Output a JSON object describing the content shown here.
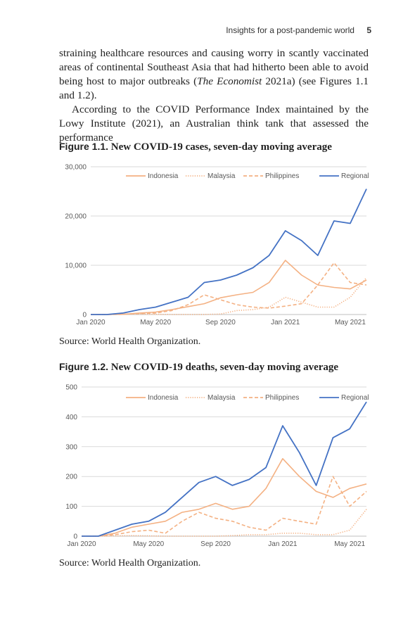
{
  "header": {
    "running_title": "Insights for a post-pandemic world",
    "page_number": "5"
  },
  "body": {
    "p1_a": "straining healthcare resources and causing worry in scantly vaccinated areas of continental Southeast Asia that had hitherto been able to avoid being host to major outbreaks (",
    "p1_italic": "The Economist",
    "p1_b": " 2021a) (see Figures 1.1 and 1.2).",
    "p2": "According to the COVID Performance Index maintained by the Lowy Institute (2021), an Australian think tank that assessed the performance"
  },
  "figures": [
    {
      "label": "Figure 1.1.",
      "title": "New COVID-19 cases, seven-day moving average",
      "source": "Source: World Health Organization."
    },
    {
      "label": "Figure 1.2.",
      "title": "New COVID-19 deaths, seven-day moving average",
      "source": "Source: World Health Organization."
    }
  ],
  "colors": {
    "indonesia": "#F4B183",
    "malaysia": "#F4B183",
    "philippines": "#F4B183",
    "regional": "#4472C4",
    "grid": "#D9D9D9"
  },
  "chart_data": [
    {
      "type": "line",
      "title": "New COVID-19 cases, seven-day moving average",
      "xlabel": "",
      "ylabel": "",
      "x_ticks": [
        "Jan 2020",
        "May 2020",
        "Sep 2020",
        "Jan 2021",
        "May 2021"
      ],
      "y_ticks": [
        "0",
        "10,000",
        "20,000",
        "30,000"
      ],
      "ylim": [
        0,
        30000
      ],
      "grid": true,
      "legend": "top",
      "x": [
        "2020-01",
        "2020-02",
        "2020-03",
        "2020-04",
        "2020-05",
        "2020-06",
        "2020-07",
        "2020-08",
        "2020-09",
        "2020-10",
        "2020-11",
        "2020-12",
        "2021-01",
        "2021-02",
        "2021-03",
        "2021-04",
        "2021-05",
        "2021-06"
      ],
      "series": [
        {
          "name": "Indonesia",
          "style": "solid",
          "values": [
            0,
            0,
            50,
            300,
            500,
            1000,
            1600,
            2200,
            3400,
            4000,
            4500,
            6500,
            11000,
            8000,
            6000,
            5500,
            5200,
            7000
          ]
        },
        {
          "name": "Malaysia",
          "style": "dotted",
          "values": [
            0,
            0,
            100,
            100,
            50,
            20,
            10,
            20,
            100,
            800,
            1000,
            1500,
            3500,
            2500,
            1500,
            1500,
            3500,
            7500
          ]
        },
        {
          "name": "Philippines",
          "style": "dashed",
          "values": [
            0,
            0,
            50,
            200,
            300,
            800,
            2000,
            4000,
            3000,
            2000,
            1500,
            1300,
            1700,
            2200,
            6000,
            10500,
            6500,
            6000
          ]
        },
        {
          "name": "Regional",
          "style": "solid",
          "values": [
            0,
            0,
            300,
            1000,
            1500,
            2500,
            3500,
            6500,
            7000,
            8000,
            9500,
            12000,
            17000,
            15000,
            12000,
            19000,
            18500,
            25500
          ]
        }
      ]
    },
    {
      "type": "line",
      "title": "New COVID-19 deaths, seven-day moving average",
      "xlabel": "",
      "ylabel": "",
      "x_ticks": [
        "Jan 2020",
        "May 2020",
        "Sep 2020",
        "Jan 2021",
        "May 2021"
      ],
      "y_ticks": [
        "0",
        "100",
        "200",
        "300",
        "400",
        "500"
      ],
      "ylim": [
        0,
        500
      ],
      "grid": true,
      "legend": "top",
      "x": [
        "2020-01",
        "2020-02",
        "2020-03",
        "2020-04",
        "2020-05",
        "2020-06",
        "2020-07",
        "2020-08",
        "2020-09",
        "2020-10",
        "2020-11",
        "2020-12",
        "2021-01",
        "2021-02",
        "2021-03",
        "2021-04",
        "2021-05",
        "2021-06"
      ],
      "series": [
        {
          "name": "Indonesia",
          "style": "solid",
          "values": [
            0,
            0,
            10,
            30,
            40,
            50,
            80,
            90,
            110,
            90,
            100,
            160,
            260,
            200,
            150,
            130,
            160,
            175
          ]
        },
        {
          "name": "Malaysia",
          "style": "dotted",
          "values": [
            0,
            0,
            1,
            2,
            1,
            0,
            0,
            0,
            0,
            2,
            5,
            5,
            10,
            10,
            5,
            5,
            20,
            90
          ]
        },
        {
          "name": "Philippines",
          "style": "dashed",
          "values": [
            0,
            0,
            5,
            15,
            20,
            10,
            50,
            80,
            60,
            50,
            30,
            20,
            60,
            50,
            40,
            200,
            100,
            150
          ]
        },
        {
          "name": "Regional",
          "style": "solid",
          "values": [
            0,
            0,
            20,
            40,
            50,
            80,
            130,
            180,
            200,
            170,
            190,
            230,
            370,
            280,
            170,
            330,
            360,
            450
          ]
        }
      ]
    }
  ]
}
